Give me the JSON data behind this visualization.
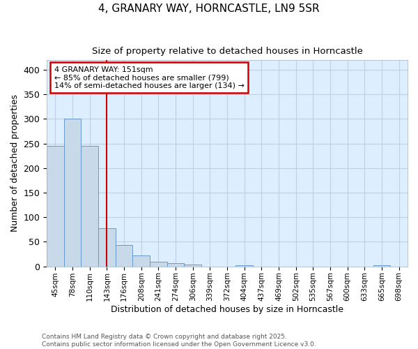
{
  "title1": "4, GRANARY WAY, HORNCASTLE, LN9 5SR",
  "title2": "Size of property relative to detached houses in Horncastle",
  "xlabel": "Distribution of detached houses by size in Horncastle",
  "ylabel": "Number of detached properties",
  "bar_labels": [
    "45sqm",
    "78sqm",
    "110sqm",
    "143sqm",
    "176sqm",
    "208sqm",
    "241sqm",
    "274sqm",
    "306sqm",
    "339sqm",
    "372sqm",
    "404sqm",
    "437sqm",
    "469sqm",
    "502sqm",
    "535sqm",
    "567sqm",
    "600sqm",
    "633sqm",
    "665sqm",
    "698sqm"
  ],
  "bar_values": [
    245,
    300,
    245,
    78,
    44,
    22,
    10,
    7,
    4,
    0,
    0,
    2,
    0,
    0,
    0,
    0,
    0,
    0,
    0,
    2,
    0
  ],
  "bar_color": "#c8daea",
  "bar_edgecolor": "#6699cc",
  "red_line_x": 3.0,
  "annotation_line1": "4 GRANARY WAY: 151sqm",
  "annotation_line2": "← 85% of detached houses are smaller (799)",
  "annotation_line3": "14% of semi-detached houses are larger (134) →",
  "annotation_box_facecolor": "#ffffff",
  "annotation_box_edgecolor": "#cc0000",
  "ylim": [
    0,
    420
  ],
  "yticks": [
    0,
    50,
    100,
    150,
    200,
    250,
    300,
    350,
    400
  ],
  "grid_color": "#c0d0e0",
  "plot_bg_color": "#ddeeff",
  "fig_bg_color": "#ffffff",
  "footnote1": "Contains HM Land Registry data © Crown copyright and database right 2025.",
  "footnote2": "Contains public sector information licensed under the Open Government Licence v3.0."
}
